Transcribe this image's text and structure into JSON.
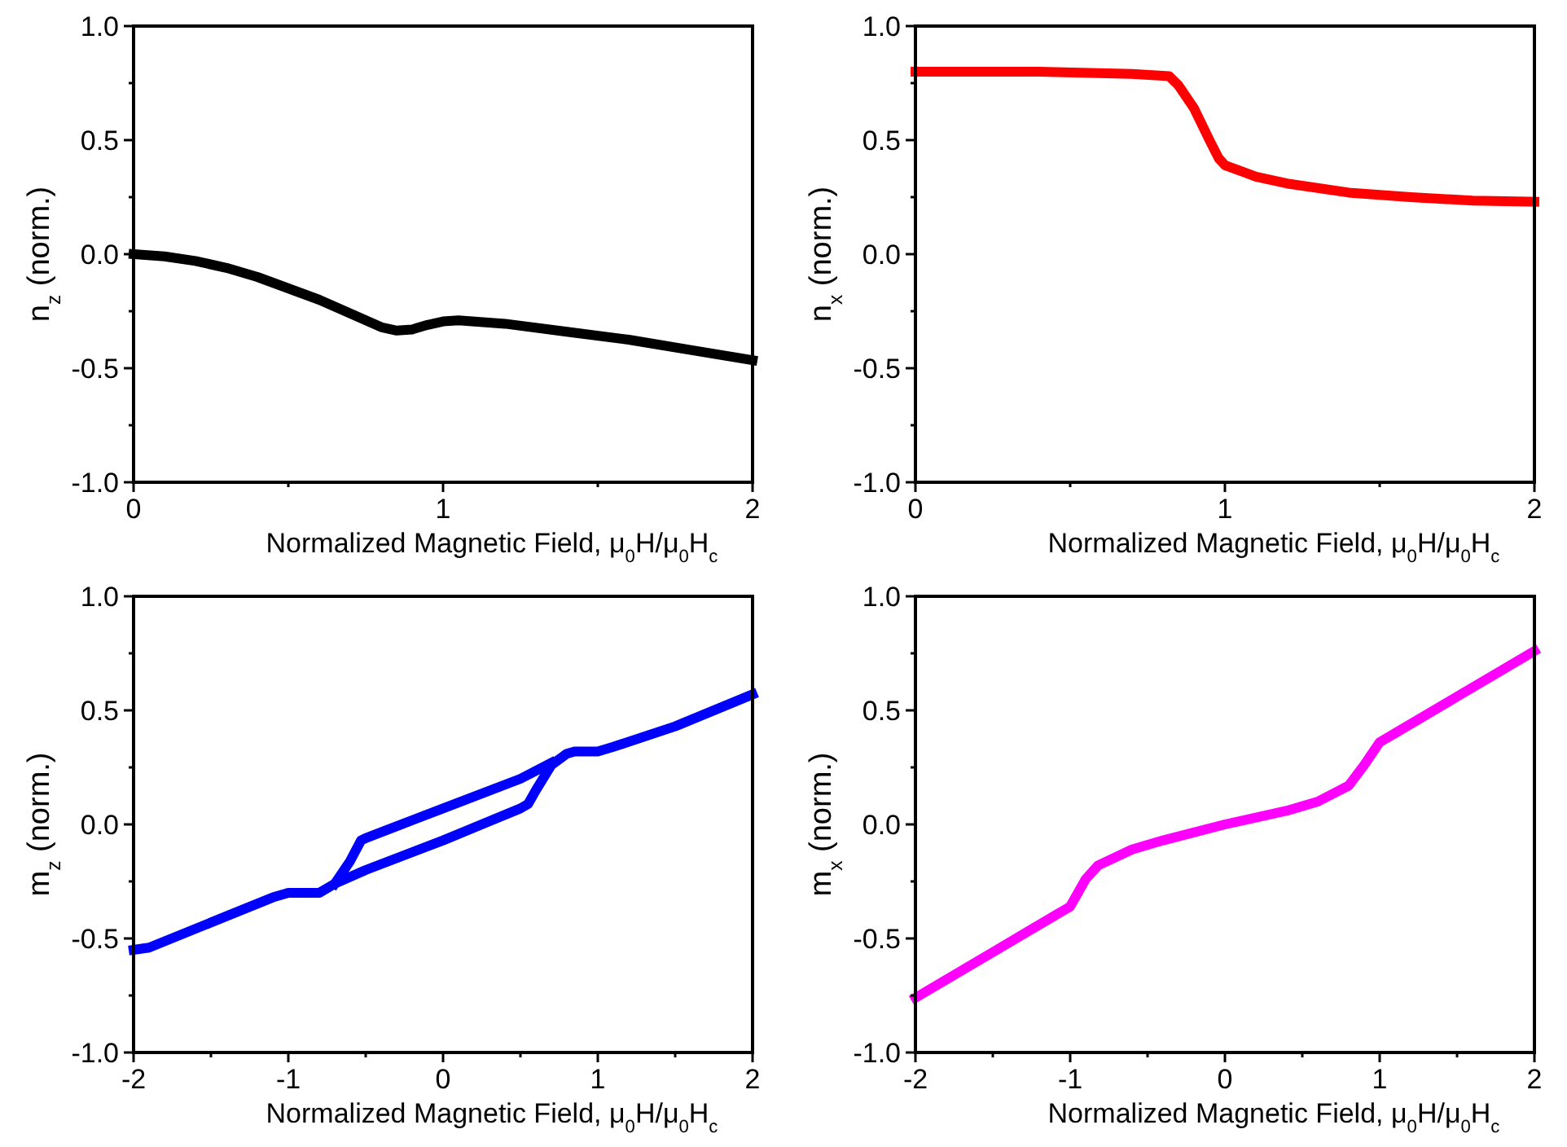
{
  "chart_data": [
    {
      "type": "line",
      "xlabel": "Normalized Magnetic Field, μ$_{0}$H/μ$_{0}$H$_{c}$",
      "ylabel": "n$_{z}$ (norm.)",
      "xlim": [
        0,
        2
      ],
      "ylim": [
        -1,
        1
      ],
      "xticks": [
        0,
        {
          "value": 0.5,
          "label": null
        },
        1,
        {
          "value": 1.5,
          "label": null
        },
        2
      ],
      "yticks": [
        {
          "value": -1,
          "label": "-1.0"
        },
        {
          "value": -0.75,
          "label": null
        },
        {
          "value": -0.5,
          "label": "-0.5"
        },
        {
          "value": -0.25,
          "label": null
        },
        {
          "value": 0,
          "label": "0.0"
        },
        {
          "value": 0.25,
          "label": null
        },
        {
          "value": 0.5,
          "label": "0.5"
        },
        {
          "value": 0.75,
          "label": null
        },
        {
          "value": 1,
          "label": "1.0"
        }
      ],
      "series": [
        {
          "color": "#000000",
          "x": [
            0,
            0.1,
            0.2,
            0.3,
            0.4,
            0.5,
            0.6,
            0.7,
            0.8,
            0.85,
            0.9,
            0.95,
            1.0,
            1.05,
            1.2,
            1.4,
            1.6,
            1.8,
            2.0
          ],
          "values": [
            0,
            -0.01,
            -0.03,
            -0.06,
            -0.1,
            -0.15,
            -0.2,
            -0.26,
            -0.32,
            -0.335,
            -0.33,
            -0.31,
            -0.295,
            -0.29,
            -0.305,
            -0.34,
            -0.375,
            -0.42,
            -0.465
          ]
        }
      ]
    },
    {
      "type": "line",
      "xlabel": "Normalized Magnetic Field, μ$_{0}$H/μ$_{0}$H$_{c}$",
      "ylabel": "n$_{x}$ (norm.)",
      "xlim": [
        0,
        2
      ],
      "ylim": [
        -1,
        1
      ],
      "xticks": [
        0,
        {
          "value": 0.5,
          "label": null
        },
        1,
        {
          "value": 1.5,
          "label": null
        },
        2
      ],
      "yticks": [
        {
          "value": -1,
          "label": "-1.0"
        },
        {
          "value": -0.75,
          "label": null
        },
        {
          "value": -0.5,
          "label": "-0.5"
        },
        {
          "value": -0.25,
          "label": null
        },
        {
          "value": 0,
          "label": "0.0"
        },
        {
          "value": 0.25,
          "label": null
        },
        {
          "value": 0.5,
          "label": "0.5"
        },
        {
          "value": 0.75,
          "label": null
        },
        {
          "value": 1,
          "label": "1.0"
        }
      ],
      "series": [
        {
          "color": "#ff0000",
          "x": [
            0,
            0.4,
            0.7,
            0.82,
            0.85,
            0.9,
            0.95,
            0.98,
            1.0,
            1.1,
            1.2,
            1.4,
            1.6,
            1.8,
            2.0
          ],
          "values": [
            0.8,
            0.8,
            0.79,
            0.78,
            0.74,
            0.64,
            0.5,
            0.42,
            0.39,
            0.34,
            0.31,
            0.27,
            0.25,
            0.235,
            0.23
          ]
        }
      ]
    },
    {
      "type": "line",
      "xlabel": "Normalized Magnetic Field, μ$_{0}$H/μ$_{0}$H$_{c}$",
      "ylabel": "m$_{z}$ (norm.)",
      "xlim": [
        -2,
        2
      ],
      "ylim": [
        -1,
        1
      ],
      "xticks": [
        -2,
        {
          "value": -1.5,
          "label": null
        },
        -1,
        {
          "value": -0.5,
          "label": null
        },
        0,
        {
          "value": 0.5,
          "label": null
        },
        1,
        {
          "value": 1.5,
          "label": null
        },
        2
      ],
      "yticks": [
        {
          "value": -1,
          "label": "-1.0"
        },
        {
          "value": -0.75,
          "label": null
        },
        {
          "value": -0.5,
          "label": "-0.5"
        },
        {
          "value": -0.25,
          "label": null
        },
        {
          "value": 0,
          "label": "0.0"
        },
        {
          "value": 0.25,
          "label": null
        },
        {
          "value": 0.5,
          "label": "0.5"
        },
        {
          "value": 0.75,
          "label": null
        },
        {
          "value": 1,
          "label": "1.0"
        }
      ],
      "series": [
        {
          "color": "#0000ff",
          "x": [
            -2.0,
            -1.9,
            -1.5,
            -1.1,
            -1.0,
            -0.8,
            -0.7,
            -0.5,
            0,
            0.5,
            0.55,
            0.6,
            0.7,
            0.8,
            0.85,
            1.0,
            1.1,
            1.5,
            2.0
          ],
          "values": [
            -0.55,
            -0.54,
            -0.43,
            -0.32,
            -0.3,
            -0.3,
            -0.26,
            -0.2,
            -0.07,
            0.07,
            0.09,
            0.15,
            0.26,
            0.31,
            0.32,
            0.32,
            0.34,
            0.43,
            0.57
          ]
        },
        {
          "color": "#0000ff",
          "x": [
            -0.7,
            -0.6,
            -0.53,
            -0.5,
            0,
            0.5,
            0.7
          ],
          "values": [
            -0.26,
            -0.16,
            -0.07,
            -0.06,
            0.07,
            0.2,
            0.27
          ]
        }
      ]
    },
    {
      "type": "line",
      "xlabel": "Normalized Magnetic Field, μ$_{0}$H/μ$_{0}$H$_{c}$",
      "ylabel": "m$_{x}$ (norm.)",
      "xlim": [
        -2,
        2
      ],
      "ylim": [
        -1,
        1
      ],
      "xticks": [
        -2,
        {
          "value": -1.5,
          "label": null
        },
        -1,
        {
          "value": -0.5,
          "label": null
        },
        0,
        {
          "value": 0.5,
          "label": null
        },
        1,
        {
          "value": 1.5,
          "label": null
        },
        2
      ],
      "yticks": [
        {
          "value": -1,
          "label": "-1.0"
        },
        {
          "value": -0.75,
          "label": null
        },
        {
          "value": -0.5,
          "label": "-0.5"
        },
        {
          "value": -0.25,
          "label": null
        },
        {
          "value": 0,
          "label": "0.0"
        },
        {
          "value": 0.25,
          "label": null
        },
        {
          "value": 0.5,
          "label": "0.5"
        },
        {
          "value": 0.75,
          "label": null
        },
        {
          "value": 1,
          "label": "1.0"
        }
      ],
      "series": [
        {
          "color": "#ff00ff",
          "x": [
            -2.0,
            -1.5,
            -1.1,
            -1.0,
            -0.9,
            -0.82,
            -0.6,
            -0.4,
            0,
            0.4,
            0.6,
            0.8,
            0.9,
            1.0,
            1.1,
            1.5,
            2.0
          ],
          "values": [
            -0.76,
            -0.56,
            -0.4,
            -0.36,
            -0.24,
            -0.18,
            -0.11,
            -0.07,
            0,
            0.06,
            0.1,
            0.17,
            0.26,
            0.36,
            0.4,
            0.56,
            0.76
          ]
        }
      ]
    }
  ]
}
